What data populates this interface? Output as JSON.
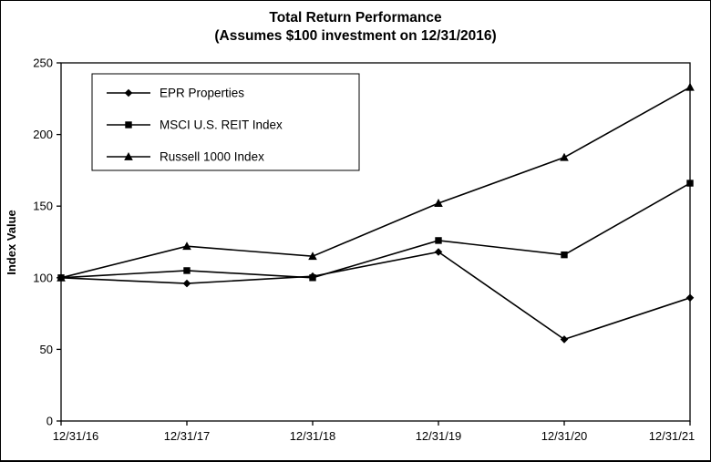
{
  "chart_data": {
    "type": "line",
    "title": "Total Return Performance",
    "subtitle": "(Assumes $100 investment on 12/31/2016)",
    "xlabel": "",
    "ylabel": "Index Value",
    "ylim": [
      0,
      250
    ],
    "yticks": [
      0,
      50,
      100,
      150,
      200,
      250
    ],
    "grid": false,
    "legend_position": "inside-top-left",
    "line_color": "#000000",
    "background_color": "#ffffff",
    "categories": [
      "12/31/16",
      "12/31/17",
      "12/31/18",
      "12/31/19",
      "12/31/20",
      "12/31/21"
    ],
    "series": [
      {
        "name": "EPR Properties",
        "marker": "diamond",
        "values": [
          100,
          96,
          101,
          118,
          57,
          86
        ]
      },
      {
        "name": "MSCI U.S. REIT Index",
        "marker": "square",
        "values": [
          100,
          105,
          100,
          126,
          116,
          166
        ]
      },
      {
        "name": "Russell 1000 Index",
        "marker": "triangle",
        "values": [
          100,
          122,
          115,
          152,
          184,
          233
        ]
      }
    ]
  }
}
